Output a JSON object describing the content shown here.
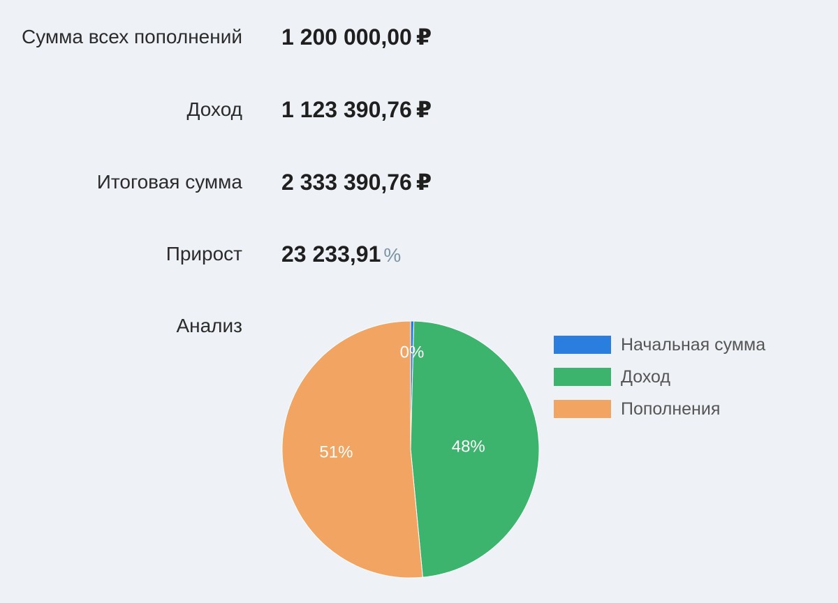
{
  "summary": {
    "rows": [
      {
        "label": "Сумма всех пополнений",
        "value": "1 200 000,00",
        "unit": "₽"
      },
      {
        "label": "Доход",
        "value": "1 123 390,76",
        "unit": "₽"
      },
      {
        "label": "Итоговая сумма",
        "value": "2 333 390,76",
        "unit": "₽"
      },
      {
        "label": "Прирост",
        "value": "23 233,91",
        "unit": "%"
      }
    ],
    "analysis_label": "Анализ"
  },
  "chart_data": {
    "type": "pie",
    "categories": [
      "Начальная сумма",
      "Доход",
      "Пополнения"
    ],
    "values": [
      0.4,
      48,
      51.4
    ],
    "data_labels": [
      "0%",
      "48%",
      "51%"
    ],
    "colors": [
      "#2a7fde",
      "#3db46d",
      "#f2a462"
    ],
    "legend_position": "right"
  }
}
